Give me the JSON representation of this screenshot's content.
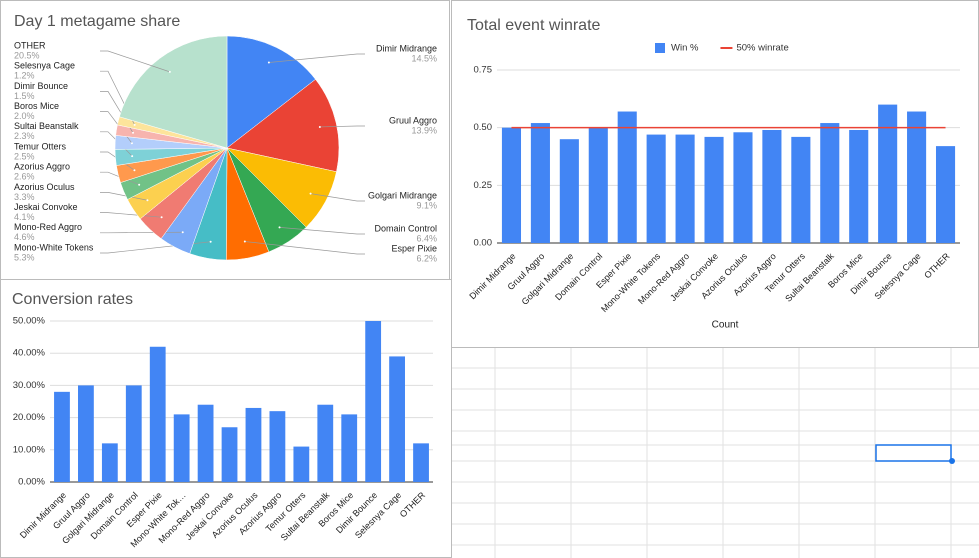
{
  "chart_data": [
    {
      "type": "pie",
      "title": "Day 1 metagame share",
      "categories": [
        "Dimir Midrange",
        "Gruul Aggro",
        "Golgari Midrange",
        "Domain Control",
        "Esper Pixie",
        "Mono-White Tokens",
        "Mono-Red Aggro",
        "Jeskai Convoke",
        "Azorius Oculus",
        "Azorius Aggro",
        "Temur Otters",
        "Sultai Beanstalk",
        "Boros Mice",
        "Dimir Bounce",
        "Selesnya Cage",
        "OTHER"
      ],
      "values": [
        14.5,
        13.9,
        9.1,
        6.4,
        6.2,
        5.3,
        4.6,
        4.1,
        3.3,
        2.6,
        2.5,
        2.3,
        2.0,
        1.5,
        1.2,
        20.5
      ],
      "value_labels": [
        "14.5%",
        "13.9%",
        "9.1%",
        "6.4%",
        "6.2%",
        "5.3%",
        "4.6%",
        "4.1%",
        "3.3%",
        "2.6%",
        "2.5%",
        "2.3%",
        "2.0%",
        "1.5%",
        "1.2%",
        "20.5%"
      ],
      "colors": [
        "#4285f4",
        "#ea4335",
        "#fbbc04",
        "#34a853",
        "#ff6d01",
        "#46bdc6",
        "#7baaf7",
        "#f07b72",
        "#fcd04f",
        "#71c287",
        "#ff994d",
        "#7ed1d7",
        "#b3cefb",
        "#f7b4ae",
        "#fde49b",
        "#b7e1cd"
      ]
    },
    {
      "type": "bar",
      "title": "Total event winrate",
      "x_label": "Count",
      "categories": [
        "Dimir Midrange",
        "Gruul Aggro",
        "Golgari Midrange",
        "Domain Control",
        "Esper Pixie",
        "Mono-White Tokens",
        "Mono-Red Aggro",
        "Jeskai Convoke",
        "Azorius Oculus",
        "Azorius Aggro",
        "Temur Otters",
        "Sultai Beanstalk",
        "Boros Mice",
        "Dimir Bounce",
        "Selesnya Cage",
        "OTHER"
      ],
      "series": [
        {
          "name": "Win %",
          "type": "bar",
          "color": "#4285f4",
          "values": [
            0.5,
            0.52,
            0.45,
            0.5,
            0.57,
            0.47,
            0.47,
            0.46,
            0.48,
            0.49,
            0.46,
            0.52,
            0.49,
            0.6,
            0.57,
            0.42
          ]
        },
        {
          "name": "50% winrate",
          "type": "line",
          "color": "#ea4335",
          "values": [
            0.5,
            0.5,
            0.5,
            0.5,
            0.5,
            0.5,
            0.5,
            0.5,
            0.5,
            0.5,
            0.5,
            0.5,
            0.5,
            0.5,
            0.5,
            0.5
          ]
        }
      ],
      "ylim": [
        0,
        0.75
      ],
      "yticks": [
        {
          "value": 0,
          "label": "0.00"
        },
        {
          "value": 0.25,
          "label": "0.25"
        },
        {
          "value": 0.5,
          "label": "0.50"
        },
        {
          "value": 0.75,
          "label": "0.75"
        }
      ],
      "legend": "top",
      "grid": true
    },
    {
      "type": "bar",
      "title": "Conversion rates",
      "categories": [
        "Dimir Midrange",
        "Gruul Aggro",
        "Golgari Midrange",
        "Domain Control",
        "Esper Pixie",
        "Mono-White Tok…",
        "Mono-Red Aggro",
        "Jeskai Convoke",
        "Azorius Oculus",
        "Azorius Aggro",
        "Temur Otters",
        "Sultai Beanstalk",
        "Boros Mice",
        "Dimir Bounce",
        "Selesnya Cage",
        "OTHER"
      ],
      "series": [
        {
          "type": "bar",
          "color": "#4285f4",
          "values": [
            28,
            30,
            12,
            30,
            42,
            21,
            24,
            17,
            23,
            22,
            11,
            24,
            21,
            50,
            39,
            12
          ]
        }
      ],
      "ylim": [
        0,
        50
      ],
      "yticks": [
        {
          "value": 0,
          "label": "0.00%"
        },
        {
          "value": 10,
          "label": "10.00%"
        },
        {
          "value": 20,
          "label": "20.00%"
        },
        {
          "value": 30,
          "label": "30.00%"
        },
        {
          "value": 40,
          "label": "40.00%"
        },
        {
          "value": 50,
          "label": "50.00%"
        }
      ],
      "grid": true
    }
  ]
}
